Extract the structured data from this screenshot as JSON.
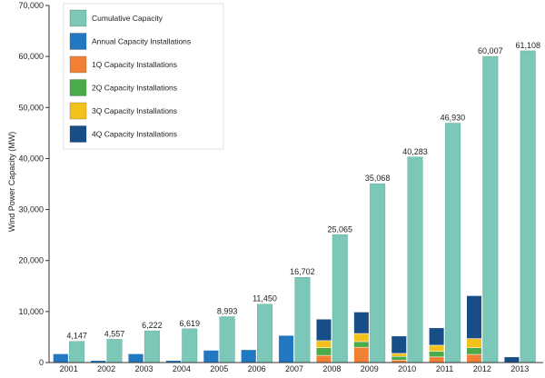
{
  "chart_data": {
    "type": "bar",
    "ylabel": "Wind Power Capacity (MW)",
    "xlabel": "",
    "ylim": [
      0,
      70000
    ],
    "yticks": [
      0,
      10000,
      20000,
      30000,
      40000,
      50000,
      60000,
      70000
    ],
    "ytick_labels": [
      "0",
      "10,000",
      "20,000",
      "30,000",
      "40,000",
      "50,000",
      "60,000",
      "70,000"
    ],
    "categories": [
      "2001",
      "2002",
      "2003",
      "2004",
      "2005",
      "2006",
      "2007",
      "2008",
      "2009",
      "2010",
      "2011",
      "2012",
      "2013"
    ],
    "legend_position": "top-left",
    "series": [
      {
        "name": "Cumulative Capacity",
        "color": "#7cc8b8",
        "values": [
          4147,
          4557,
          6222,
          6619,
          8993,
          11450,
          16702,
          25065,
          35068,
          40283,
          46930,
          60007,
          61108
        ],
        "value_labels": [
          "4,147",
          "4,557",
          "6,222",
          "6,619",
          "8,993",
          "11,450",
          "16,702",
          "25,065",
          "35,068",
          "40,283",
          "46,930",
          "60,007",
          "61,108"
        ]
      },
      {
        "name": "Annual Capacity Installations",
        "color": "#2278c0",
        "values": [
          1700,
          400,
          1700,
          400,
          2400,
          2500,
          5300,
          null,
          null,
          null,
          null,
          null,
          null
        ]
      },
      {
        "name": "1Q Capacity Installations",
        "color": "#f08033",
        "values": [
          null,
          null,
          null,
          null,
          null,
          null,
          null,
          1400,
          3000,
          500,
          1100,
          1600,
          0
        ]
      },
      {
        "name": "2Q Capacity Installations",
        "color": "#4aab4a",
        "values": [
          null,
          null,
          null,
          null,
          null,
          null,
          null,
          1500,
          1100,
          700,
          1100,
          1300,
          0
        ]
      },
      {
        "name": "3Q Capacity Installations",
        "color": "#f3c11c",
        "values": [
          null,
          null,
          null,
          null,
          null,
          null,
          null,
          1400,
          1600,
          600,
          1200,
          1800,
          0
        ]
      },
      {
        "name": "4Q Capacity Installations",
        "color": "#174e87",
        "values": [
          null,
          null,
          null,
          null,
          null,
          null,
          null,
          4200,
          4200,
          3400,
          3400,
          8400,
          1100
        ]
      }
    ]
  }
}
